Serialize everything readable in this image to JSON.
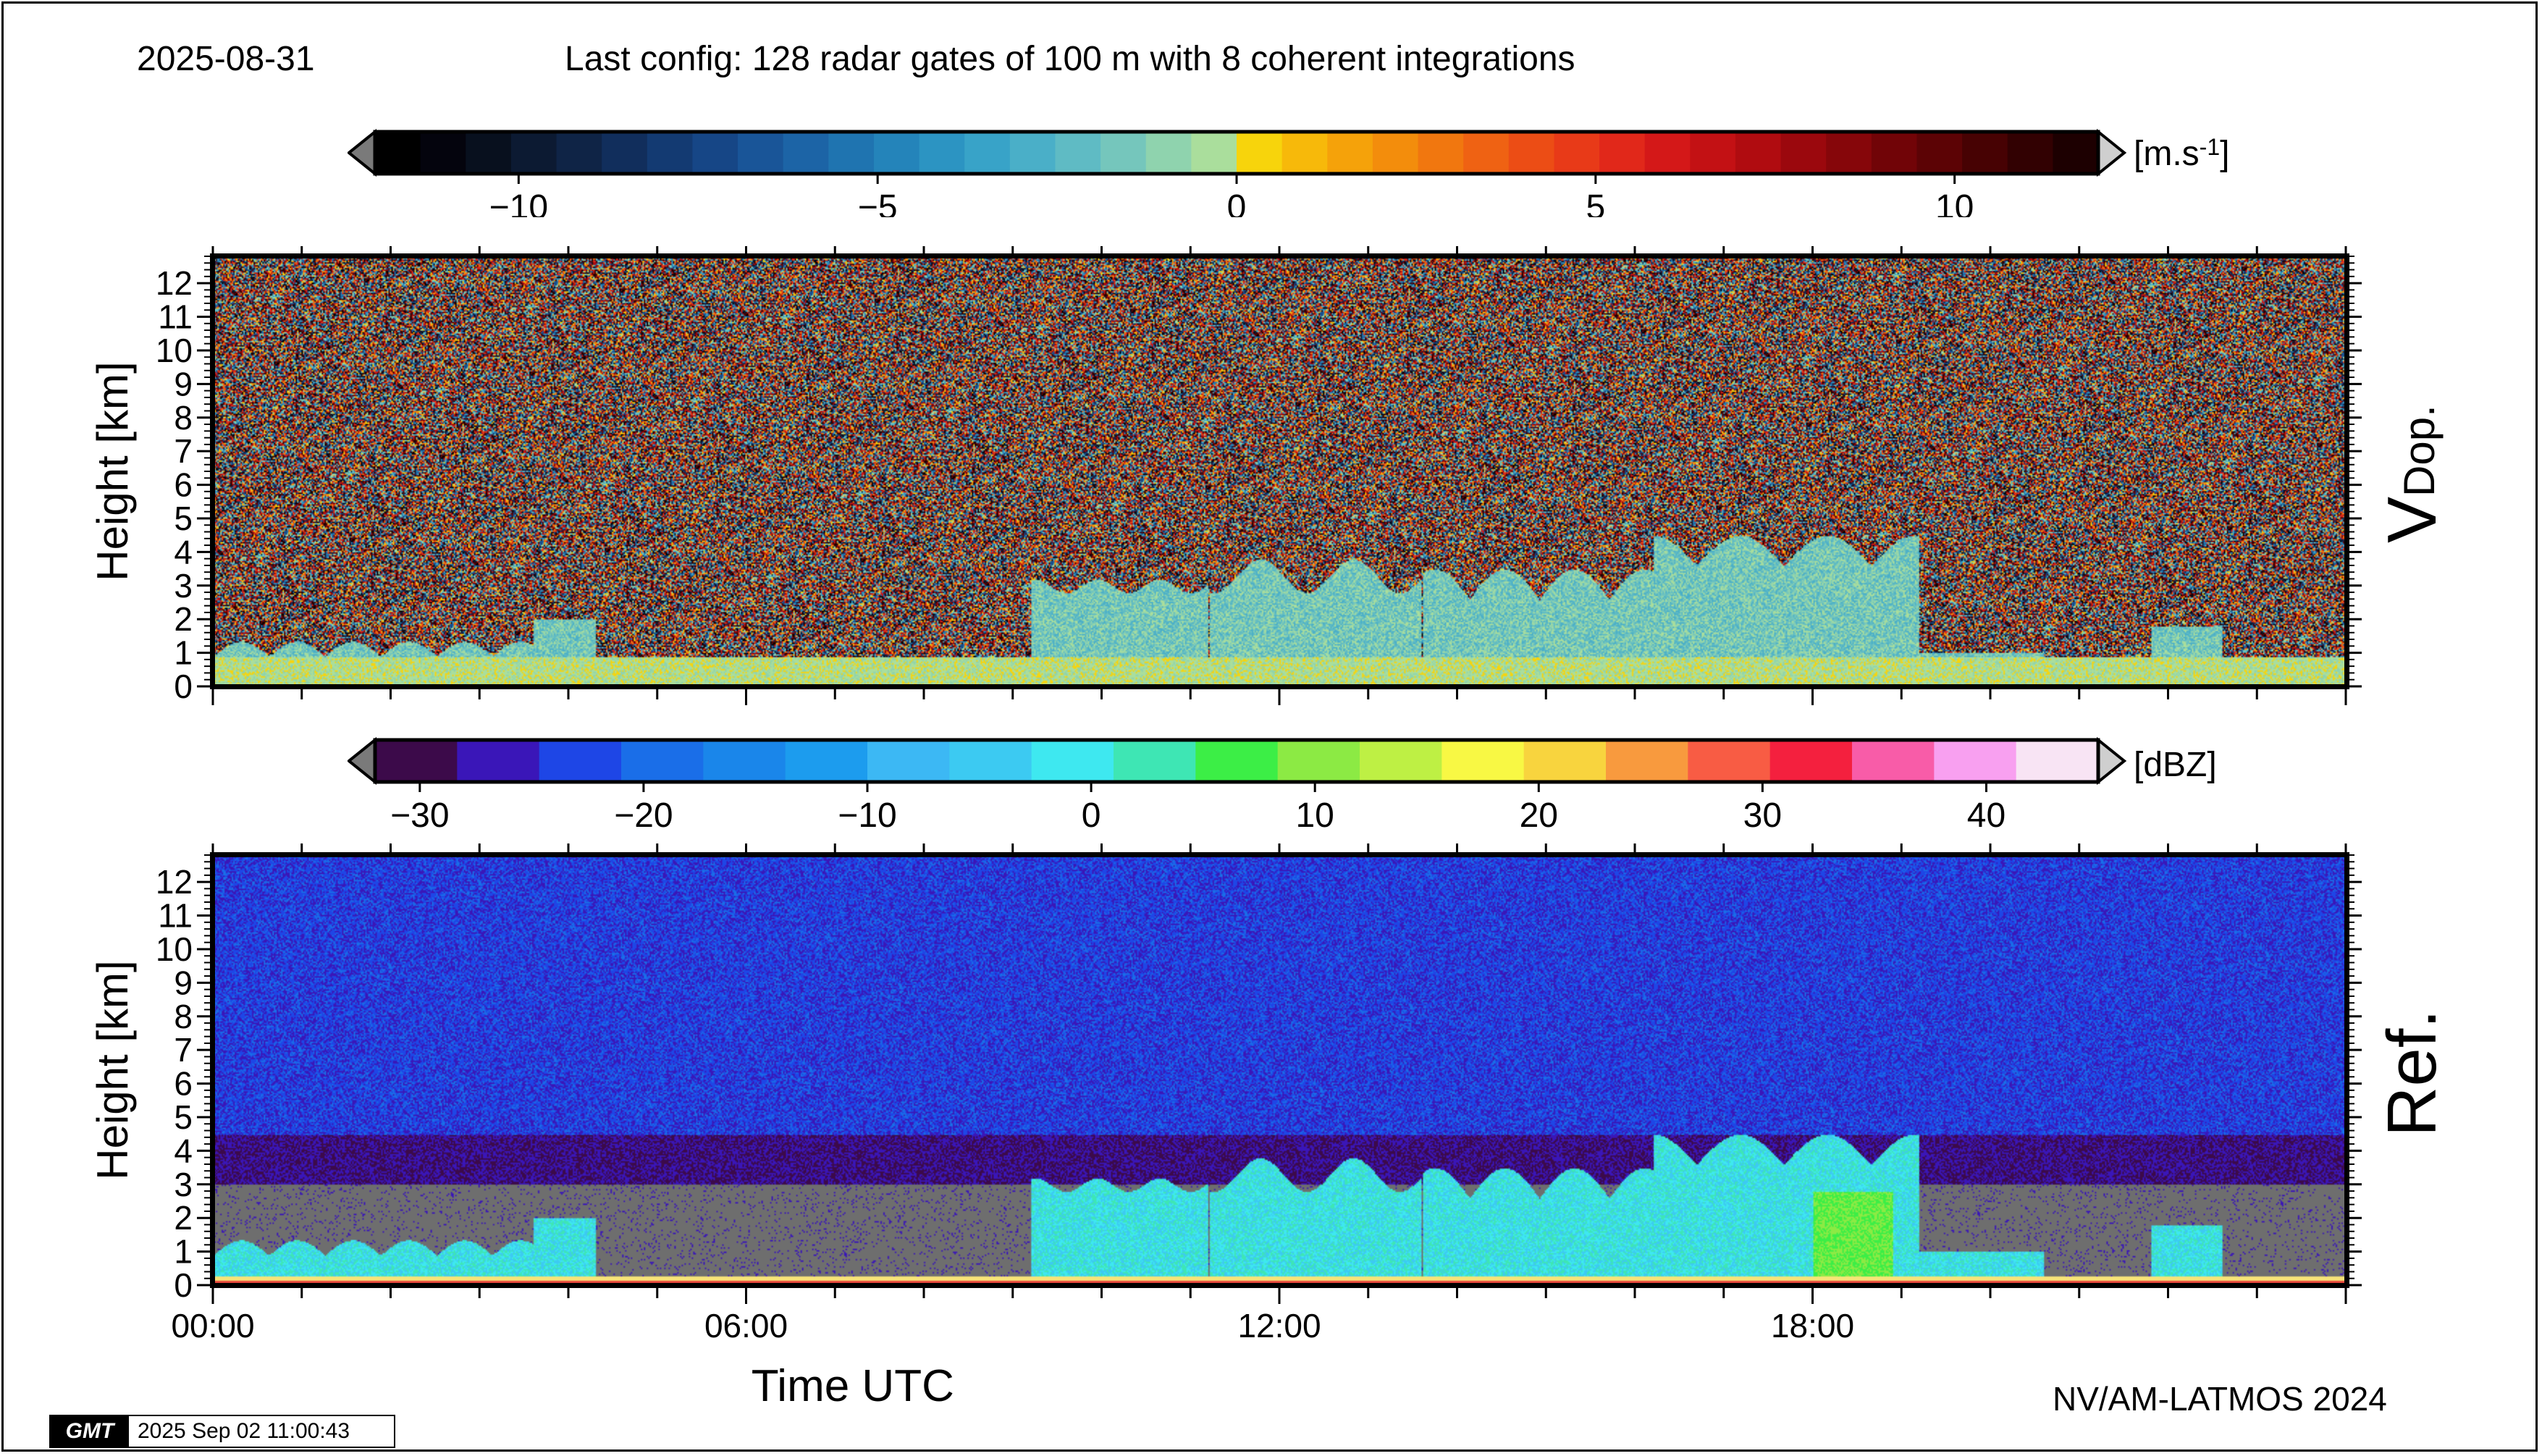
{
  "header": {
    "date": "2025-08-31",
    "config": "Last config: 128 radar gates of 100 m with 8 coherent integrations"
  },
  "footer": {
    "credit": "NV/AM-LATMOS 2024",
    "gmt_logo": "GMT",
    "timestamp": "2025 Sep 02 11:00:43"
  },
  "chart_data": [
    {
      "type": "heatmap",
      "title": "V Dop.",
      "side_label_main": "V",
      "side_label_sub": "Dop.",
      "ylabel": "Height [km]",
      "xlabel": "",
      "ylim": [
        0,
        12.8
      ],
      "xlim_hours": [
        0,
        24
      ],
      "y_ticks": [
        0,
        1,
        2,
        3,
        4,
        5,
        6,
        7,
        8,
        9,
        10,
        11,
        12
      ],
      "colorbar": {
        "unit_base": "[m.s",
        "unit_sup": "-1",
        "unit_end": "]",
        "range": [
          -12,
          12
        ],
        "tick_values": [
          -10,
          -5,
          0,
          5,
          10
        ],
        "tick_labels": [
          "−10",
          "−5",
          "0",
          "5",
          "10"
        ],
        "colors": [
          "#000000",
          "#04040d",
          "#08101e",
          "#0c1a32",
          "#0f2446",
          "#112e5c",
          "#133a72",
          "#164686",
          "#195598",
          "#1c64a6",
          "#1f74b0",
          "#2484ba",
          "#2c94c2",
          "#38a3c8",
          "#4aafc8",
          "#5fbbc4",
          "#75c6bc",
          "#8fd3ae",
          "#aade9c",
          "#f7d40c",
          "#f7b90a",
          "#f5a20a",
          "#f38d0c",
          "#f1770f",
          "#ef6213",
          "#ec4d15",
          "#e83a18",
          "#e1281a",
          "#d41818",
          "#c31114",
          "#b00c10",
          "#9b080d",
          "#86060a",
          "#710407",
          "#5c0305",
          "#470203",
          "#320102",
          "#1d0001"
        ],
        "extend": "both"
      }
    },
    {
      "type": "heatmap",
      "title": "Ref.",
      "side_label_main": "Ref.",
      "ylabel": "Height [km]",
      "xlabel": "Time UTC",
      "ylim": [
        0,
        12.8
      ],
      "xlim_hours": [
        0,
        24
      ],
      "y_ticks": [
        0,
        1,
        2,
        3,
        4,
        5,
        6,
        7,
        8,
        9,
        10,
        11,
        12
      ],
      "x_ticks": [
        "00:00",
        "06:00",
        "12:00",
        "18:00"
      ],
      "x_tick_hours": [
        0,
        6,
        12,
        18
      ],
      "colorbar": {
        "unit_base": "[dBZ]",
        "range": [
          -32,
          45
        ],
        "tick_values": [
          -30,
          -20,
          -10,
          0,
          10,
          20,
          30,
          40
        ],
        "tick_labels": [
          "−30",
          "−20",
          "−10",
          "0",
          "10",
          "20",
          "30",
          "40"
        ],
        "colors": [
          "#3c0a4a",
          "#3a16b8",
          "#1e46e6",
          "#1a6ee8",
          "#1a86ea",
          "#1c9cee",
          "#3cb8f4",
          "#3ccaf2",
          "#3ee8f0",
          "#3ee6b4",
          "#3cee46",
          "#8cea44",
          "#bef044",
          "#f8f844",
          "#f8d43e",
          "#f89a3e",
          "#f85c44",
          "#f4203e",
          "#f85ca8",
          "#f8a0f0",
          "#f8e4f4"
        ],
        "extend": "both"
      }
    }
  ]
}
